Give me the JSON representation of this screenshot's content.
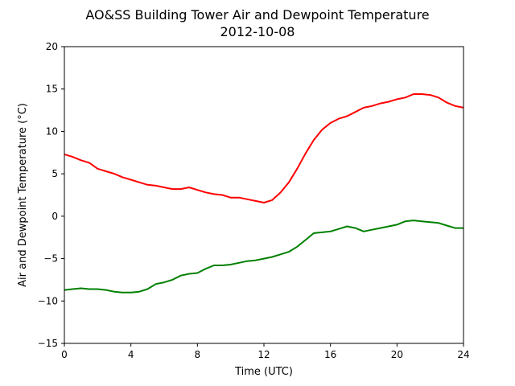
{
  "chart_data": {
    "type": "line",
    "title": "AO&SS Building Tower Air and Dewpoint Temperature",
    "subtitle": "2012-10-08",
    "xlabel": "Time (UTC)",
    "ylabel": "Air and Dewpoint Temperature (°C)",
    "xlim": [
      0,
      24
    ],
    "ylim": [
      -15,
      20
    ],
    "xticks": [
      0,
      4,
      8,
      12,
      16,
      20,
      24
    ],
    "yticks": [
      -15,
      -10,
      -5,
      0,
      5,
      10,
      15,
      20
    ],
    "grid": false,
    "series": [
      {
        "color": "#ff0000",
        "x": [
          0,
          0.5,
          1,
          1.5,
          2,
          2.5,
          3,
          3.5,
          4,
          4.5,
          5,
          5.5,
          6,
          6.5,
          7,
          7.5,
          8,
          8.5,
          9,
          9.5,
          10,
          10.5,
          11,
          11.5,
          12,
          12.5,
          13,
          13.5,
          14,
          14.5,
          15,
          15.5,
          16,
          16.5,
          17,
          17.5,
          18,
          18.5,
          19,
          19.5,
          20,
          20.5,
          21,
          21.5,
          22,
          22.5,
          23,
          23.5,
          24
        ],
        "values": [
          7.3,
          7.0,
          6.6,
          6.3,
          5.6,
          5.3,
          5.0,
          4.6,
          4.3,
          4.0,
          3.7,
          3.6,
          3.4,
          3.2,
          3.2,
          3.4,
          3.1,
          2.8,
          2.6,
          2.5,
          2.2,
          2.2,
          2.0,
          1.8,
          1.6,
          1.9,
          2.8,
          4.0,
          5.6,
          7.4,
          9.0,
          10.2,
          11.0,
          11.5,
          11.8,
          12.3,
          12.8,
          13.0,
          13.3,
          13.5,
          13.8,
          14.0,
          14.4,
          14.4,
          14.3,
          14.0,
          13.4,
          13.0,
          12.8
        ]
      },
      {
        "color": "#008000",
        "x": [
          0,
          0.5,
          1,
          1.5,
          2,
          2.5,
          3,
          3.5,
          4,
          4.5,
          5,
          5.5,
          6,
          6.5,
          7,
          7.5,
          8,
          8.5,
          9,
          9.5,
          10,
          10.5,
          11,
          11.5,
          12,
          12.5,
          13,
          13.5,
          14,
          14.5,
          15,
          15.5,
          16,
          16.5,
          17,
          17.5,
          18,
          18.5,
          19,
          19.5,
          20,
          20.5,
          21,
          21.5,
          22,
          22.5,
          23,
          23.5,
          24
        ],
        "values": [
          -8.7,
          -8.6,
          -8.5,
          -8.6,
          -8.6,
          -8.7,
          -8.9,
          -9.0,
          -9.0,
          -8.9,
          -8.6,
          -8.0,
          -7.8,
          -7.5,
          -7.0,
          -6.8,
          -6.7,
          -6.2,
          -5.8,
          -5.8,
          -5.7,
          -5.5,
          -5.3,
          -5.2,
          -5.0,
          -4.8,
          -4.5,
          -4.2,
          -3.6,
          -2.8,
          -2.0,
          -1.9,
          -1.8,
          -1.5,
          -1.2,
          -1.4,
          -1.8,
          -1.6,
          -1.4,
          -1.2,
          -1.0,
          -0.6,
          -0.5,
          -0.6,
          -0.7,
          -0.8,
          -1.1,
          -1.4,
          -1.4
        ]
      }
    ]
  }
}
